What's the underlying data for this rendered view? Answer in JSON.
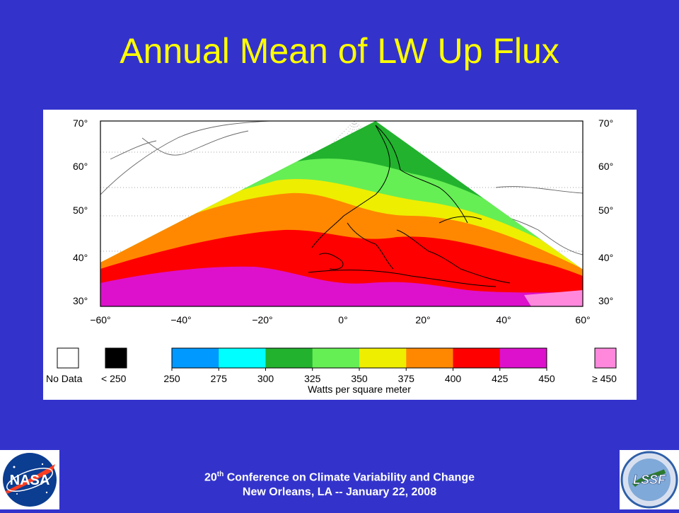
{
  "title": "Annual Mean of LW Up Flux",
  "map": {
    "lat_labels": [
      "70°",
      "60°",
      "50°",
      "40°",
      "30°"
    ],
    "lon_labels": [
      "−60°",
      "−40°",
      "−20°",
      "0°",
      "20°",
      "40°",
      "60°"
    ]
  },
  "legend": {
    "no_data_label": "No Data",
    "below_label": "< 250",
    "above_label": "≥ 450",
    "scale_ticks": [
      "250",
      "275",
      "300",
      "325",
      "350",
      "375",
      "400",
      "425",
      "450"
    ],
    "unit_label": "Watts per square meter",
    "colors": {
      "no_data": "#ffffff",
      "below": "#000000",
      "bins": [
        "#0099ff",
        "#00ffff",
        "#22b22e",
        "#66ee55",
        "#eeee00",
        "#ff8800",
        "#ff0000",
        "#dd11cc"
      ],
      "above": "#ff88dd"
    }
  },
  "footer": {
    "conf_number": "20",
    "conf_suffix": "th",
    "conf_rest": " Conference on Climate Variability and Change",
    "line2": "New Orleans, LA -- January 22, 2008"
  },
  "logos": {
    "left_text": "NASA",
    "right_text": "LSSF"
  }
}
